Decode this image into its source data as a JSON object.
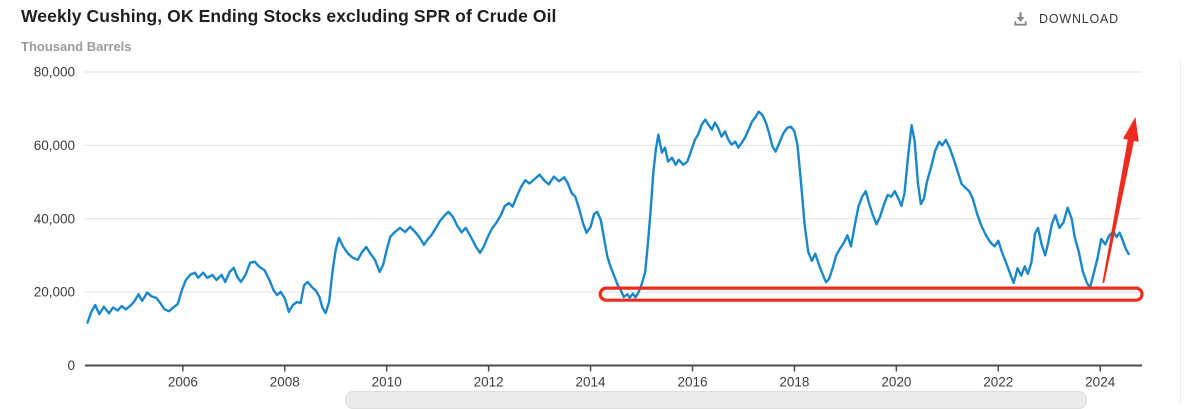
{
  "header": {
    "title": "Weekly Cushing, OK Ending Stocks excluding SPR of Crude Oil",
    "unit_label": "Thousand Barrels",
    "download_label": "DOWNLOAD"
  },
  "chart_data": {
    "type": "line",
    "title": "Weekly Cushing, OK Ending Stocks excluding SPR of Crude Oil",
    "ylabel": "Thousand Barrels",
    "xlabel": "",
    "xlim": [
      2004.08,
      2024.82
    ],
    "ylim": [
      0,
      80000
    ],
    "grid": "horizontal",
    "legend": "none",
    "axis_color": "#4d4d4d",
    "grid_color": "#e2e2e2",
    "tick_label_color": "#3d3d3d",
    "x_ticks": [
      {
        "label": "2006",
        "value": 2006
      },
      {
        "label": "2008",
        "value": 2008
      },
      {
        "label": "2010",
        "value": 2010
      },
      {
        "label": "2012",
        "value": 2012
      },
      {
        "label": "2014",
        "value": 2014
      },
      {
        "label": "2016",
        "value": 2016
      },
      {
        "label": "2018",
        "value": 2018
      },
      {
        "label": "2020",
        "value": 2020
      },
      {
        "label": "2022",
        "value": 2022
      },
      {
        "label": "2024",
        "value": 2024
      }
    ],
    "y_ticks": [
      {
        "label": "0",
        "value": 0
      },
      {
        "label": "20,000",
        "value": 20000
      },
      {
        "label": "40,000",
        "value": 40000
      },
      {
        "label": "60,000",
        "value": 60000
      },
      {
        "label": "80,000",
        "value": 80000
      }
    ],
    "series": [
      {
        "name": "Weekly Cushing, OK Ending Stocks excluding SPR of Crude Oil",
        "color": "#1a87c9",
        "points": [
          [
            2004.13,
            11700
          ],
          [
            2004.2,
            14500
          ],
          [
            2004.28,
            16500
          ],
          [
            2004.36,
            14000
          ],
          [
            2004.45,
            16000
          ],
          [
            2004.55,
            14200
          ],
          [
            2004.63,
            15800
          ],
          [
            2004.72,
            15000
          ],
          [
            2004.8,
            16200
          ],
          [
            2004.88,
            15300
          ],
          [
            2004.97,
            16300
          ],
          [
            2005.05,
            17500
          ],
          [
            2005.13,
            19400
          ],
          [
            2005.2,
            17600
          ],
          [
            2005.3,
            19900
          ],
          [
            2005.38,
            18900
          ],
          [
            2005.48,
            18400
          ],
          [
            2005.56,
            17000
          ],
          [
            2005.64,
            15300
          ],
          [
            2005.73,
            14800
          ],
          [
            2005.82,
            15900
          ],
          [
            2005.9,
            16800
          ],
          [
            2005.98,
            20500
          ],
          [
            2006.06,
            23300
          ],
          [
            2006.15,
            24800
          ],
          [
            2006.24,
            25300
          ],
          [
            2006.3,
            23900
          ],
          [
            2006.4,
            25300
          ],
          [
            2006.48,
            23900
          ],
          [
            2006.58,
            24700
          ],
          [
            2006.66,
            23300
          ],
          [
            2006.76,
            24700
          ],
          [
            2006.83,
            22800
          ],
          [
            2006.92,
            25500
          ],
          [
            2007.0,
            26600
          ],
          [
            2007.07,
            24100
          ],
          [
            2007.14,
            22800
          ],
          [
            2007.23,
            24700
          ],
          [
            2007.32,
            28000
          ],
          [
            2007.41,
            28300
          ],
          [
            2007.5,
            26900
          ],
          [
            2007.6,
            26000
          ],
          [
            2007.7,
            23300
          ],
          [
            2007.78,
            20500
          ],
          [
            2007.85,
            19200
          ],
          [
            2007.92,
            20100
          ],
          [
            2008.0,
            18300
          ],
          [
            2008.08,
            14600
          ],
          [
            2008.16,
            16500
          ],
          [
            2008.24,
            17300
          ],
          [
            2008.31,
            17000
          ],
          [
            2008.38,
            21900
          ],
          [
            2008.45,
            22800
          ],
          [
            2008.53,
            21400
          ],
          [
            2008.61,
            20400
          ],
          [
            2008.68,
            18700
          ],
          [
            2008.74,
            15700
          ],
          [
            2008.8,
            14300
          ],
          [
            2008.87,
            17300
          ],
          [
            2008.94,
            26000
          ],
          [
            2009.0,
            31500
          ],
          [
            2009.06,
            34800
          ],
          [
            2009.15,
            32300
          ],
          [
            2009.24,
            30500
          ],
          [
            2009.33,
            29400
          ],
          [
            2009.43,
            28800
          ],
          [
            2009.52,
            31000
          ],
          [
            2009.6,
            32300
          ],
          [
            2009.68,
            30500
          ],
          [
            2009.77,
            28800
          ],
          [
            2009.86,
            25500
          ],
          [
            2009.93,
            27400
          ],
          [
            2010.0,
            31500
          ],
          [
            2010.07,
            35100
          ],
          [
            2010.16,
            36400
          ],
          [
            2010.26,
            37500
          ],
          [
            2010.36,
            36400
          ],
          [
            2010.46,
            37800
          ],
          [
            2010.56,
            36400
          ],
          [
            2010.65,
            34800
          ],
          [
            2010.73,
            32900
          ],
          [
            2010.8,
            34300
          ],
          [
            2010.88,
            35600
          ],
          [
            2010.97,
            37600
          ],
          [
            2011.05,
            39500
          ],
          [
            2011.13,
            40800
          ],
          [
            2011.21,
            41900
          ],
          [
            2011.3,
            40500
          ],
          [
            2011.38,
            38200
          ],
          [
            2011.47,
            36300
          ],
          [
            2011.55,
            37500
          ],
          [
            2011.65,
            35100
          ],
          [
            2011.75,
            32400
          ],
          [
            2011.83,
            30700
          ],
          [
            2011.9,
            32300
          ],
          [
            2011.98,
            34900
          ],
          [
            2012.06,
            37200
          ],
          [
            2012.15,
            38900
          ],
          [
            2012.24,
            41000
          ],
          [
            2012.32,
            43500
          ],
          [
            2012.4,
            44300
          ],
          [
            2012.47,
            43300
          ],
          [
            2012.55,
            46000
          ],
          [
            2012.63,
            48500
          ],
          [
            2012.72,
            50500
          ],
          [
            2012.8,
            49600
          ],
          [
            2012.9,
            50800
          ],
          [
            2013.0,
            52000
          ],
          [
            2013.1,
            50300
          ],
          [
            2013.18,
            49400
          ],
          [
            2013.28,
            51500
          ],
          [
            2013.38,
            50200
          ],
          [
            2013.48,
            51300
          ],
          [
            2013.55,
            49800
          ],
          [
            2013.63,
            47000
          ],
          [
            2013.7,
            46000
          ],
          [
            2013.78,
            42500
          ],
          [
            2013.85,
            38900
          ],
          [
            2013.92,
            36200
          ],
          [
            2014.0,
            37800
          ],
          [
            2014.07,
            41300
          ],
          [
            2014.13,
            41900
          ],
          [
            2014.2,
            39700
          ],
          [
            2014.27,
            34300
          ],
          [
            2014.33,
            29600
          ],
          [
            2014.4,
            26600
          ],
          [
            2014.47,
            24200
          ],
          [
            2014.53,
            22000
          ],
          [
            2014.6,
            20300
          ],
          [
            2014.65,
            18700
          ],
          [
            2014.72,
            19400
          ],
          [
            2014.77,
            18500
          ],
          [
            2014.83,
            19600
          ],
          [
            2014.88,
            18600
          ],
          [
            2014.94,
            19900
          ],
          [
            2015.0,
            22000
          ],
          [
            2015.07,
            25300
          ],
          [
            2015.12,
            32300
          ],
          [
            2015.18,
            42500
          ],
          [
            2015.23,
            52600
          ],
          [
            2015.28,
            58800
          ],
          [
            2015.33,
            62900
          ],
          [
            2015.4,
            58000
          ],
          [
            2015.46,
            59400
          ],
          [
            2015.52,
            55600
          ],
          [
            2015.6,
            56600
          ],
          [
            2015.67,
            54700
          ],
          [
            2015.73,
            56100
          ],
          [
            2015.82,
            54700
          ],
          [
            2015.9,
            55600
          ],
          [
            2015.98,
            58800
          ],
          [
            2016.05,
            61600
          ],
          [
            2016.11,
            62900
          ],
          [
            2016.18,
            65700
          ],
          [
            2016.25,
            67000
          ],
          [
            2016.31,
            65700
          ],
          [
            2016.38,
            64300
          ],
          [
            2016.44,
            66200
          ],
          [
            2016.5,
            64800
          ],
          [
            2016.57,
            62400
          ],
          [
            2016.64,
            63800
          ],
          [
            2016.7,
            61600
          ],
          [
            2016.77,
            60200
          ],
          [
            2016.84,
            61000
          ],
          [
            2016.9,
            59400
          ],
          [
            2016.97,
            60800
          ],
          [
            2017.03,
            62100
          ],
          [
            2017.1,
            64300
          ],
          [
            2017.17,
            66500
          ],
          [
            2017.23,
            67600
          ],
          [
            2017.3,
            69200
          ],
          [
            2017.37,
            68300
          ],
          [
            2017.44,
            66200
          ],
          [
            2017.5,
            63500
          ],
          [
            2017.57,
            59700
          ],
          [
            2017.63,
            58300
          ],
          [
            2017.7,
            60500
          ],
          [
            2017.78,
            63200
          ],
          [
            2017.86,
            64800
          ],
          [
            2017.93,
            65100
          ],
          [
            2018.0,
            63900
          ],
          [
            2018.06,
            60000
          ],
          [
            2018.13,
            50000
          ],
          [
            2018.2,
            38500
          ],
          [
            2018.27,
            31000
          ],
          [
            2018.34,
            28500
          ],
          [
            2018.41,
            30500
          ],
          [
            2018.48,
            27500
          ],
          [
            2018.55,
            25000
          ],
          [
            2018.62,
            22700
          ],
          [
            2018.68,
            23600
          ],
          [
            2018.75,
            26500
          ],
          [
            2018.82,
            30000
          ],
          [
            2018.9,
            32000
          ],
          [
            2018.97,
            33500
          ],
          [
            2019.04,
            35500
          ],
          [
            2019.11,
            32500
          ],
          [
            2019.18,
            38000
          ],
          [
            2019.26,
            43500
          ],
          [
            2019.33,
            46000
          ],
          [
            2019.4,
            47500
          ],
          [
            2019.47,
            44000
          ],
          [
            2019.54,
            41000
          ],
          [
            2019.61,
            38500
          ],
          [
            2019.68,
            40500
          ],
          [
            2019.76,
            44000
          ],
          [
            2019.83,
            46500
          ],
          [
            2019.9,
            46000
          ],
          [
            2019.97,
            47500
          ],
          [
            2020.04,
            45500
          ],
          [
            2020.1,
            43500
          ],
          [
            2020.16,
            47000
          ],
          [
            2020.23,
            57000
          ],
          [
            2020.3,
            65500
          ],
          [
            2020.36,
            61000
          ],
          [
            2020.42,
            50000
          ],
          [
            2020.48,
            44000
          ],
          [
            2020.54,
            45500
          ],
          [
            2020.6,
            50000
          ],
          [
            2020.68,
            54000
          ],
          [
            2020.76,
            58500
          ],
          [
            2020.84,
            61000
          ],
          [
            2020.9,
            60000
          ],
          [
            2020.97,
            61500
          ],
          [
            2021.04,
            59500
          ],
          [
            2021.12,
            56500
          ],
          [
            2021.2,
            53000
          ],
          [
            2021.28,
            49500
          ],
          [
            2021.35,
            48500
          ],
          [
            2021.43,
            47500
          ],
          [
            2021.5,
            45500
          ],
          [
            2021.58,
            41500
          ],
          [
            2021.67,
            38000
          ],
          [
            2021.76,
            35500
          ],
          [
            2021.85,
            33500
          ],
          [
            2021.93,
            32500
          ],
          [
            2022.0,
            34000
          ],
          [
            2022.07,
            31000
          ],
          [
            2022.14,
            28500
          ],
          [
            2022.22,
            25500
          ],
          [
            2022.3,
            22500
          ],
          [
            2022.38,
            26500
          ],
          [
            2022.45,
            24500
          ],
          [
            2022.52,
            27000
          ],
          [
            2022.58,
            25000
          ],
          [
            2022.65,
            28000
          ],
          [
            2022.72,
            36000
          ],
          [
            2022.78,
            37500
          ],
          [
            2022.85,
            33000
          ],
          [
            2022.92,
            30000
          ],
          [
            2022.98,
            33500
          ],
          [
            2023.05,
            38500
          ],
          [
            2023.12,
            41000
          ],
          [
            2023.2,
            37500
          ],
          [
            2023.28,
            39000
          ],
          [
            2023.36,
            43000
          ],
          [
            2023.44,
            40000
          ],
          [
            2023.5,
            35000
          ],
          [
            2023.58,
            31000
          ],
          [
            2023.66,
            25500
          ],
          [
            2023.74,
            22500
          ],
          [
            2023.8,
            21200
          ],
          [
            2023.88,
            25500
          ],
          [
            2023.95,
            29500
          ],
          [
            2024.02,
            34500
          ],
          [
            2024.1,
            33000
          ],
          [
            2024.18,
            35500
          ],
          [
            2024.26,
            36500
          ],
          [
            2024.32,
            35000
          ],
          [
            2024.38,
            36200
          ],
          [
            2024.44,
            34200
          ],
          [
            2024.5,
            31800
          ],
          [
            2024.56,
            30400
          ]
        ]
      }
    ],
    "annotations": {
      "support_box": {
        "type": "rect",
        "year_start": 2014.19,
        "year_end": 2024.82,
        "value_center": 19450,
        "value_half_span": 1650,
        "color": "#ee2b1e"
      },
      "trend_arrow": {
        "type": "arrow",
        "from_year": 2024.06,
        "from_value": 22500,
        "to_year": 2024.69,
        "to_value": 67800,
        "color": "#ee2b1e"
      }
    }
  }
}
